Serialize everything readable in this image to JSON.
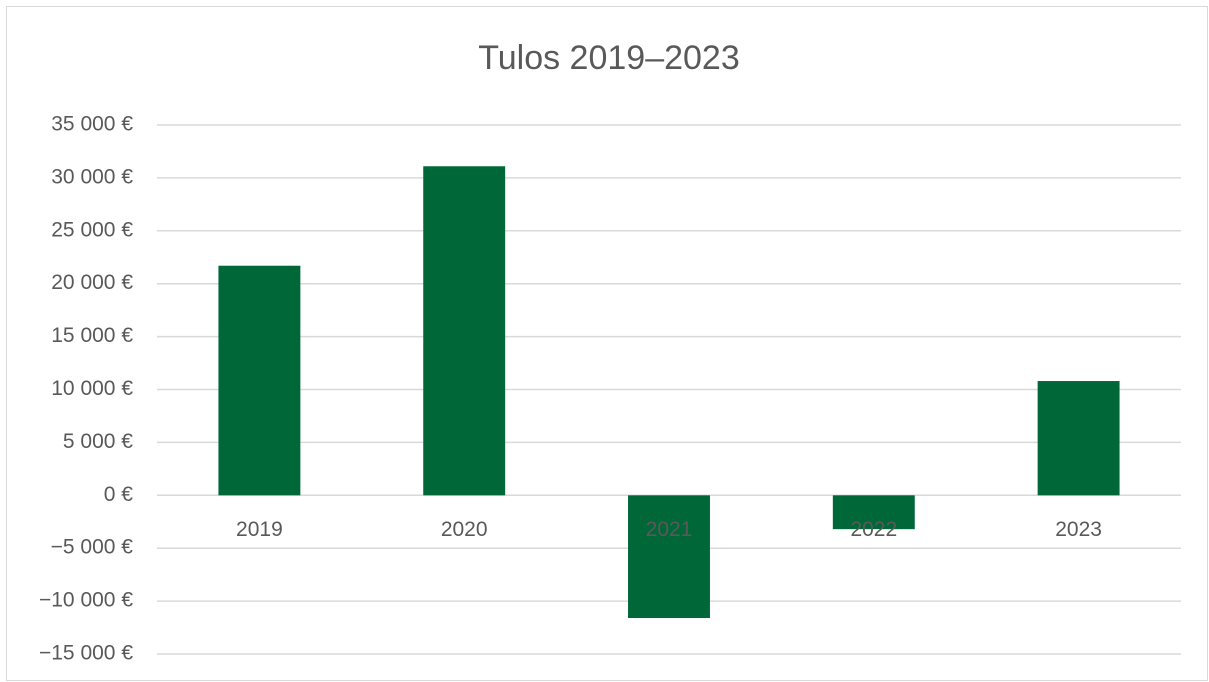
{
  "chart_data": {
    "type": "bar",
    "title": "Tulos 2019–2023",
    "categories": [
      "2019",
      "2020",
      "2021",
      "2022",
      "2023"
    ],
    "values": [
      21700,
      31100,
      -11600,
      -3200,
      10800
    ],
    "color": "#006838",
    "ylim": [
      -15000,
      35000
    ],
    "yticks": [
      {
        "value": -15000,
        "label": "−15 000 €"
      },
      {
        "value": -10000,
        "label": "−10 000 €"
      },
      {
        "value": -5000,
        "label": "−5 000 €"
      },
      {
        "value": 0,
        "label": "0 €"
      },
      {
        "value": 5000,
        "label": "5 000 €"
      },
      {
        "value": 10000,
        "label": "10 000 €"
      },
      {
        "value": 15000,
        "label": "15 000 €"
      },
      {
        "value": 20000,
        "label": "20 000 €"
      },
      {
        "value": 25000,
        "label": "25 000 €"
      },
      {
        "value": 30000,
        "label": "30 000 €"
      },
      {
        "value": 35000,
        "label": "35 000 €"
      }
    ],
    "grid": true
  }
}
